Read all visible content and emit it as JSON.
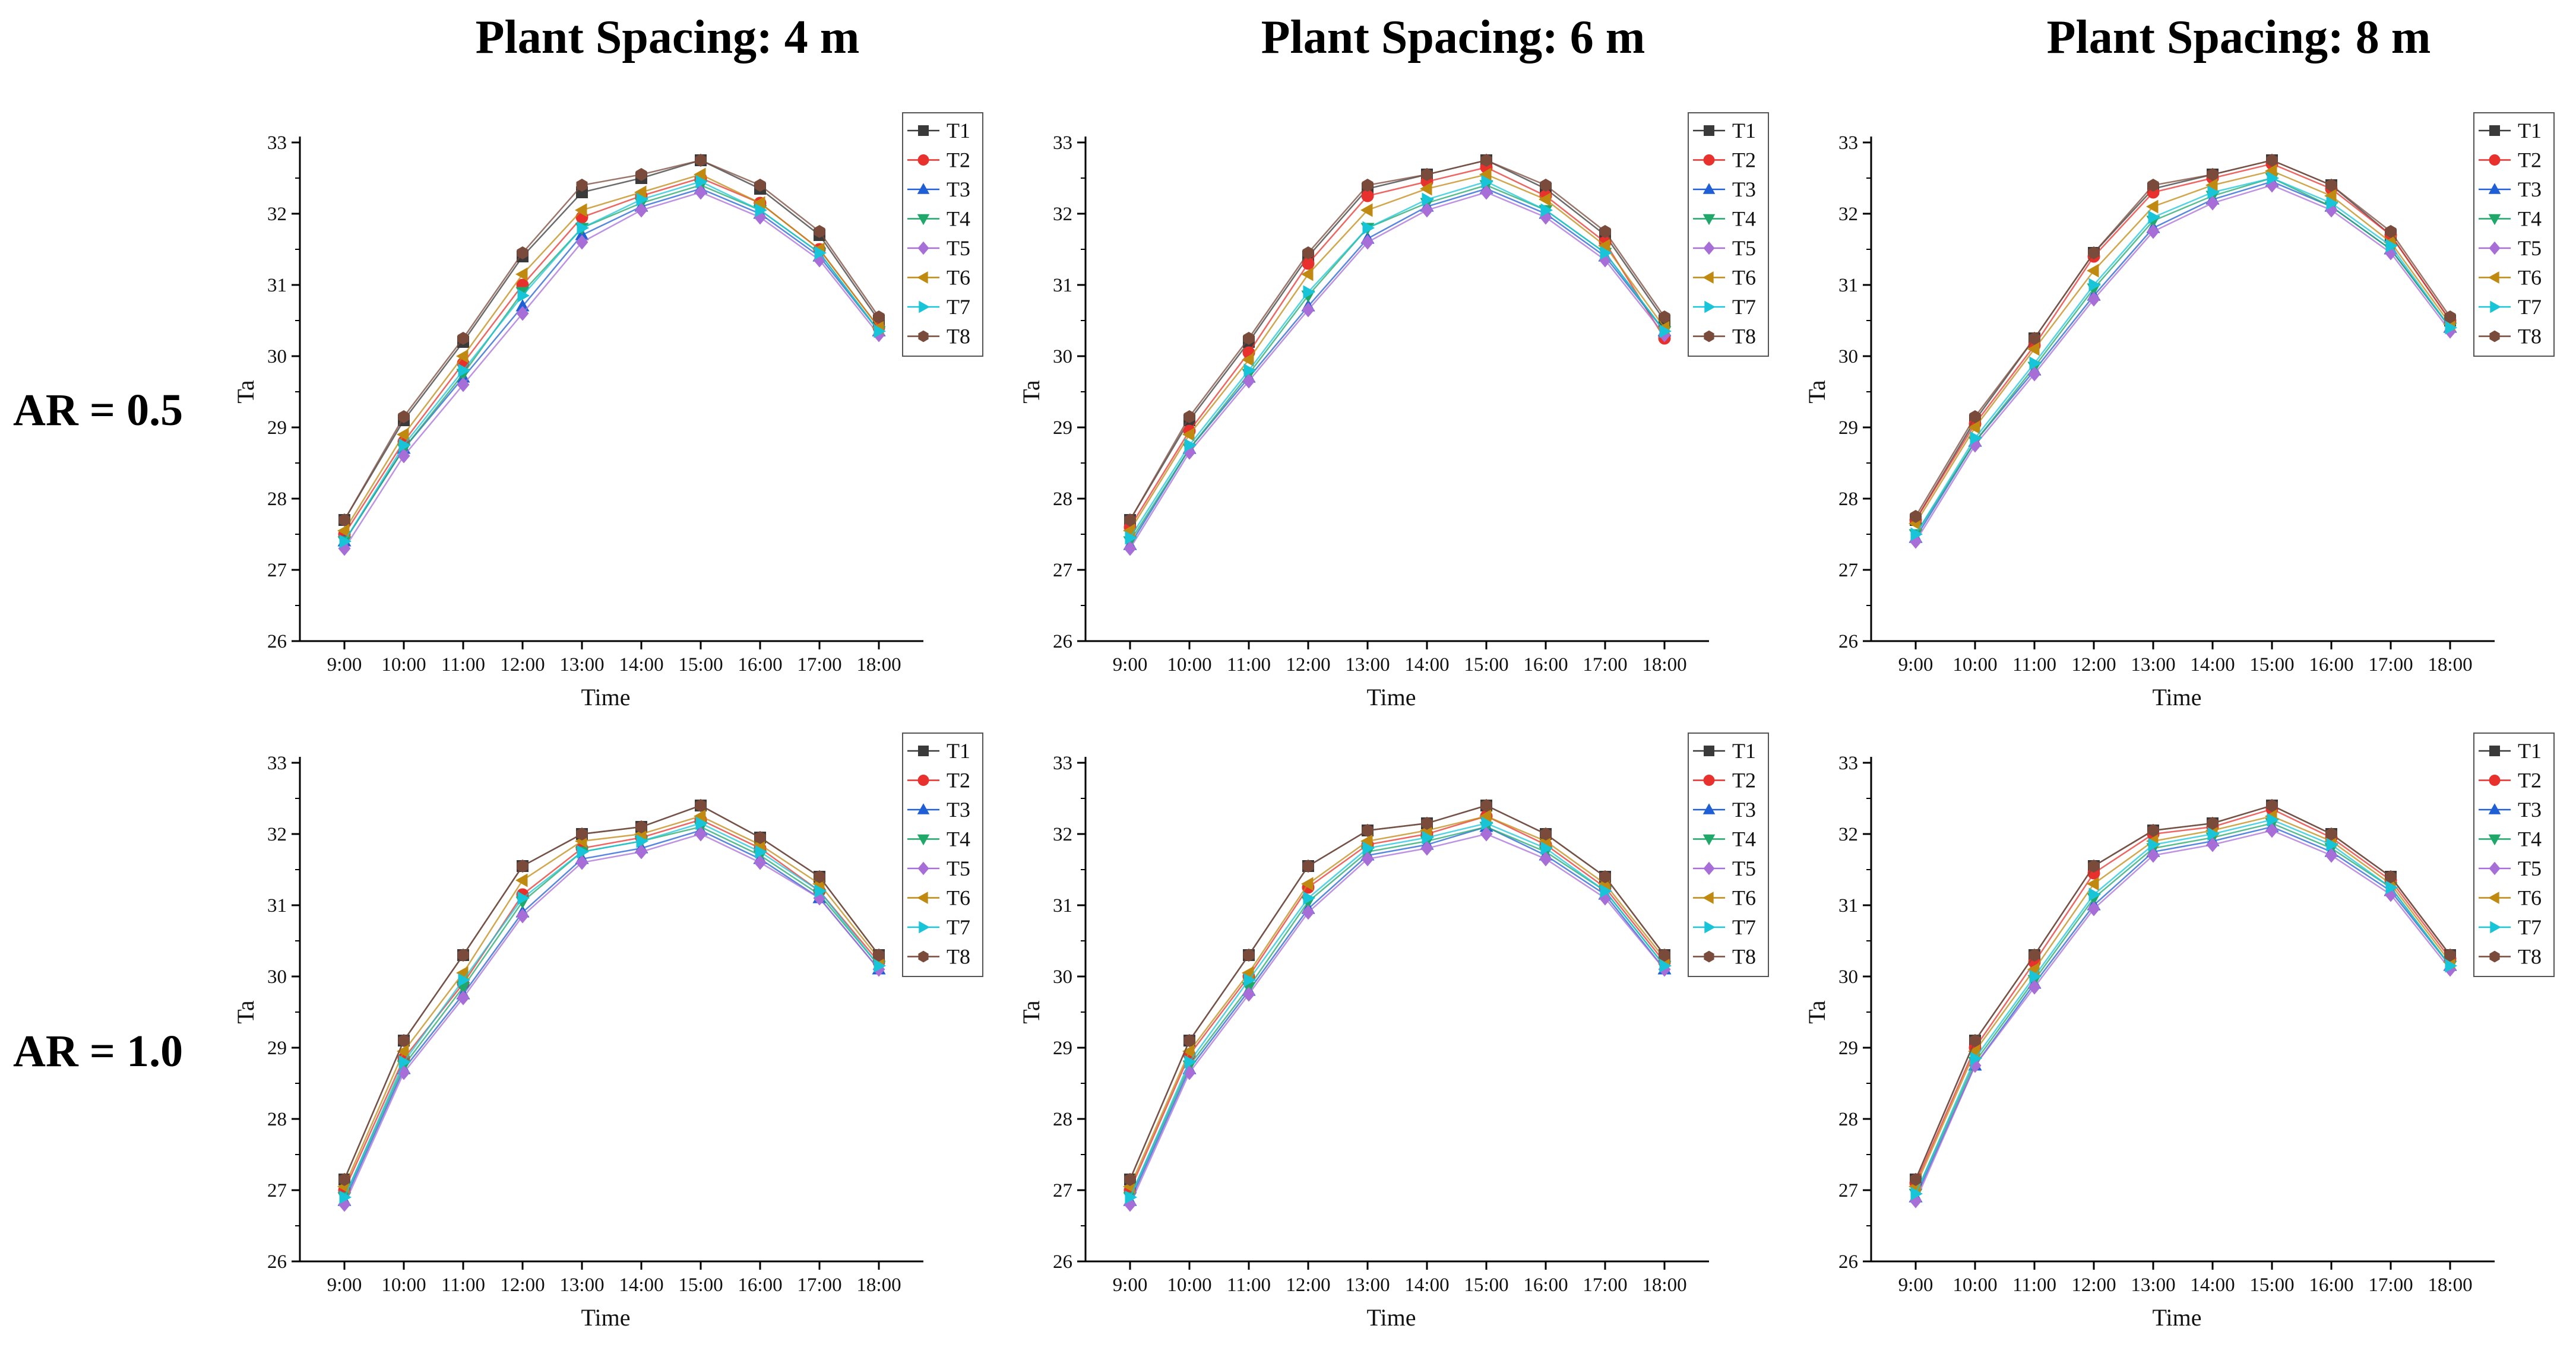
{
  "columns": [
    "Plant Spacing: 4 m",
    "Plant Spacing: 6 m",
    "Plant Spacing: 8 m"
  ],
  "rows": [
    "AR = 0.5",
    "AR = 1.0"
  ],
  "series_style": [
    {
      "name": "T1",
      "color": "#3a3a3a",
      "marker": "square"
    },
    {
      "name": "T2",
      "color": "#e8312d",
      "marker": "circle"
    },
    {
      "name": "T3",
      "color": "#1f5fd6",
      "marker": "triangle-up"
    },
    {
      "name": "T4",
      "color": "#1fa86a",
      "marker": "triangle-down"
    },
    {
      "name": "T5",
      "color": "#a86ed8",
      "marker": "diamond"
    },
    {
      "name": "T6",
      "color": "#c08a10",
      "marker": "triangle-left"
    },
    {
      "name": "T7",
      "color": "#18c4d8",
      "marker": "triangle-right"
    },
    {
      "name": "T8",
      "color": "#7a4a3a",
      "marker": "hexagon"
    }
  ],
  "chart_data": [
    {
      "type": "line",
      "column_title": "Plant Spacing: 4 m",
      "row_title": "AR = 0.5",
      "xlabel": "Time",
      "ylabel": "Ta",
      "ylim": [
        26,
        33
      ],
      "yticks": [
        26,
        27,
        28,
        29,
        30,
        31,
        32,
        33
      ],
      "categories": [
        "9:00",
        "10:00",
        "11:00",
        "12:00",
        "13:00",
        "14:00",
        "15:00",
        "16:00",
        "17:00",
        "18:00"
      ],
      "series": [
        {
          "name": "T1",
          "values": [
            27.7,
            29.1,
            30.2,
            31.4,
            32.3,
            32.5,
            32.75,
            32.35,
            31.7,
            30.5
          ]
        },
        {
          "name": "T2",
          "values": [
            27.5,
            28.8,
            29.9,
            31.0,
            31.95,
            32.25,
            32.5,
            32.15,
            31.5,
            30.4
          ]
        },
        {
          "name": "T3",
          "values": [
            27.4,
            28.7,
            29.7,
            30.7,
            31.7,
            32.1,
            32.35,
            32.0,
            31.4,
            30.35
          ]
        },
        {
          "name": "T4",
          "values": [
            27.4,
            28.7,
            29.75,
            30.9,
            31.8,
            32.15,
            32.4,
            32.05,
            31.45,
            30.35
          ]
        },
        {
          "name": "T5",
          "values": [
            27.3,
            28.6,
            29.6,
            30.6,
            31.6,
            32.05,
            32.3,
            31.95,
            31.35,
            30.3
          ]
        },
        {
          "name": "T6",
          "values": [
            27.55,
            28.9,
            30.0,
            31.15,
            32.05,
            32.3,
            32.55,
            32.15,
            31.5,
            30.4
          ]
        },
        {
          "name": "T7",
          "values": [
            27.4,
            28.75,
            29.8,
            30.85,
            31.8,
            32.2,
            32.45,
            32.05,
            31.45,
            30.35
          ]
        },
        {
          "name": "T8",
          "values": [
            27.7,
            29.15,
            30.25,
            31.45,
            32.4,
            32.55,
            32.75,
            32.4,
            31.75,
            30.55
          ]
        }
      ]
    },
    {
      "type": "line",
      "column_title": "Plant Spacing: 6 m",
      "row_title": "AR = 0.5",
      "xlabel": "Time",
      "ylabel": "Ta",
      "ylim": [
        26,
        33
      ],
      "yticks": [
        26,
        27,
        28,
        29,
        30,
        31,
        32,
        33
      ],
      "categories": [
        "9:00",
        "10:00",
        "11:00",
        "12:00",
        "13:00",
        "14:00",
        "15:00",
        "16:00",
        "17:00",
        "18:00"
      ],
      "series": [
        {
          "name": "T1",
          "values": [
            27.7,
            29.1,
            30.2,
            31.4,
            32.35,
            32.55,
            32.75,
            32.35,
            31.7,
            30.5
          ]
        },
        {
          "name": "T2",
          "values": [
            27.6,
            28.95,
            30.05,
            31.3,
            32.25,
            32.45,
            32.65,
            32.25,
            31.6,
            30.25
          ]
        },
        {
          "name": "T3",
          "values": [
            27.35,
            28.7,
            29.7,
            30.7,
            31.65,
            32.1,
            32.35,
            32.0,
            31.4,
            30.35
          ]
        },
        {
          "name": "T4",
          "values": [
            27.4,
            28.7,
            29.75,
            30.85,
            31.8,
            32.15,
            32.4,
            32.05,
            31.45,
            30.35
          ]
        },
        {
          "name": "T5",
          "values": [
            27.3,
            28.65,
            29.65,
            30.65,
            31.6,
            32.05,
            32.3,
            31.95,
            31.35,
            30.3
          ]
        },
        {
          "name": "T6",
          "values": [
            27.55,
            28.9,
            29.95,
            31.15,
            32.05,
            32.35,
            32.55,
            32.2,
            31.55,
            30.4
          ]
        },
        {
          "name": "T7",
          "values": [
            27.45,
            28.75,
            29.8,
            30.9,
            31.8,
            32.2,
            32.45,
            32.05,
            31.45,
            30.35
          ]
        },
        {
          "name": "T8",
          "values": [
            27.7,
            29.15,
            30.25,
            31.45,
            32.4,
            32.55,
            32.75,
            32.4,
            31.75,
            30.55
          ]
        }
      ]
    },
    {
      "type": "line",
      "column_title": "Plant Spacing: 8 m",
      "row_title": "AR = 0.5",
      "xlabel": "Time",
      "ylabel": "Ta",
      "ylim": [
        26,
        33
      ],
      "yticks": [
        26,
        27,
        28,
        29,
        30,
        31,
        32,
        33
      ],
      "categories": [
        "9:00",
        "10:00",
        "11:00",
        "12:00",
        "13:00",
        "14:00",
        "15:00",
        "16:00",
        "17:00",
        "18:00"
      ],
      "series": [
        {
          "name": "T1",
          "values": [
            27.7,
            29.1,
            30.25,
            31.45,
            32.35,
            32.55,
            32.75,
            32.4,
            31.7,
            30.5
          ]
        },
        {
          "name": "T2",
          "values": [
            27.7,
            29.05,
            30.15,
            31.4,
            32.3,
            32.5,
            32.7,
            32.35,
            31.7,
            30.5
          ]
        },
        {
          "name": "T3",
          "values": [
            27.45,
            28.8,
            29.8,
            30.85,
            31.8,
            32.2,
            32.45,
            32.1,
            31.5,
            30.4
          ]
        },
        {
          "name": "T4",
          "values": [
            27.5,
            28.8,
            29.85,
            30.95,
            31.9,
            32.25,
            32.5,
            32.1,
            31.5,
            30.4
          ]
        },
        {
          "name": "T5",
          "values": [
            27.4,
            28.75,
            29.75,
            30.8,
            31.75,
            32.15,
            32.4,
            32.05,
            31.45,
            30.35
          ]
        },
        {
          "name": "T6",
          "values": [
            27.65,
            29.0,
            30.1,
            31.2,
            32.1,
            32.4,
            32.6,
            32.25,
            31.6,
            30.45
          ]
        },
        {
          "name": "T7",
          "values": [
            27.5,
            28.85,
            29.9,
            31.0,
            31.95,
            32.3,
            32.5,
            32.15,
            31.55,
            30.4
          ]
        },
        {
          "name": "T8",
          "values": [
            27.75,
            29.15,
            30.25,
            31.45,
            32.4,
            32.55,
            32.75,
            32.4,
            31.75,
            30.55
          ]
        }
      ]
    },
    {
      "type": "line",
      "column_title": "Plant Spacing: 4 m",
      "row_title": "AR = 1.0",
      "xlabel": "Time",
      "ylabel": "Ta",
      "ylim": [
        26,
        33
      ],
      "yticks": [
        26,
        27,
        28,
        29,
        30,
        31,
        32,
        33
      ],
      "categories": [
        "9:00",
        "10:00",
        "11:00",
        "12:00",
        "13:00",
        "14:00",
        "15:00",
        "16:00",
        "17:00",
        "18:00"
      ],
      "series": [
        {
          "name": "T1",
          "values": [
            27.15,
            29.1,
            30.3,
            31.55,
            32.0,
            32.1,
            32.4,
            31.95,
            31.4,
            30.3
          ]
        },
        {
          "name": "T2",
          "values": [
            27.0,
            28.85,
            29.9,
            31.15,
            31.8,
            31.95,
            32.2,
            31.8,
            31.2,
            30.2
          ]
        },
        {
          "name": "T3",
          "values": [
            26.85,
            28.7,
            29.75,
            30.9,
            31.65,
            31.8,
            32.05,
            31.65,
            31.1,
            30.1
          ]
        },
        {
          "name": "T4",
          "values": [
            26.9,
            28.75,
            29.85,
            31.05,
            31.75,
            31.9,
            32.1,
            31.7,
            31.15,
            30.15
          ]
        },
        {
          "name": "T5",
          "values": [
            26.8,
            28.65,
            29.7,
            30.85,
            31.6,
            31.75,
            32.0,
            31.6,
            31.1,
            30.1
          ]
        },
        {
          "name": "T6",
          "values": [
            27.05,
            28.95,
            30.05,
            31.35,
            31.9,
            32.0,
            32.25,
            31.85,
            31.3,
            30.25
          ]
        },
        {
          "name": "T7",
          "values": [
            26.9,
            28.8,
            29.95,
            31.1,
            31.75,
            31.9,
            32.15,
            31.75,
            31.2,
            30.15
          ]
        },
        {
          "name": "T8",
          "values": [
            27.15,
            29.1,
            30.3,
            31.55,
            32.0,
            32.1,
            32.4,
            31.95,
            31.4,
            30.3
          ]
        }
      ]
    },
    {
      "type": "line",
      "column_title": "Plant Spacing: 6 m",
      "row_title": "AR = 1.0",
      "xlabel": "Time",
      "ylabel": "Ta",
      "ylim": [
        26,
        33
      ],
      "yticks": [
        26,
        27,
        28,
        29,
        30,
        31,
        32,
        33
      ],
      "categories": [
        "9:00",
        "10:00",
        "11:00",
        "12:00",
        "13:00",
        "14:00",
        "15:00",
        "16:00",
        "17:00",
        "18:00"
      ],
      "series": [
        {
          "name": "T1",
          "values": [
            27.15,
            29.1,
            30.3,
            31.55,
            32.05,
            32.15,
            32.4,
            32.0,
            31.4,
            30.3
          ]
        },
        {
          "name": "T2",
          "values": [
            27.0,
            28.9,
            30.0,
            31.25,
            31.85,
            32.0,
            32.25,
            31.85,
            31.25,
            30.2
          ]
        },
        {
          "name": "T3",
          "values": [
            26.85,
            28.7,
            29.8,
            30.95,
            31.7,
            31.85,
            32.1,
            31.7,
            31.15,
            30.1
          ]
        },
        {
          "name": "T4",
          "values": [
            26.9,
            28.75,
            29.85,
            31.05,
            31.75,
            31.9,
            32.1,
            31.75,
            31.2,
            30.15
          ]
        },
        {
          "name": "T5",
          "values": [
            26.8,
            28.65,
            29.75,
            30.9,
            31.65,
            31.8,
            32.0,
            31.65,
            31.1,
            30.1
          ]
        },
        {
          "name": "T6",
          "values": [
            27.05,
            28.95,
            30.05,
            31.3,
            31.9,
            32.05,
            32.25,
            31.9,
            31.3,
            30.25
          ]
        },
        {
          "name": "T7",
          "values": [
            26.9,
            28.8,
            29.95,
            31.1,
            31.8,
            31.95,
            32.15,
            31.8,
            31.2,
            30.15
          ]
        },
        {
          "name": "T8",
          "values": [
            27.15,
            29.1,
            30.3,
            31.55,
            32.05,
            32.15,
            32.4,
            32.0,
            31.4,
            30.3
          ]
        }
      ]
    },
    {
      "type": "line",
      "column_title": "Plant Spacing: 8 m",
      "row_title": "AR = 1.0",
      "xlabel": "Time",
      "ylabel": "Ta",
      "ylim": [
        26,
        33
      ],
      "yticks": [
        26,
        27,
        28,
        29,
        30,
        31,
        32,
        33
      ],
      "categories": [
        "9:00",
        "10:00",
        "11:00",
        "12:00",
        "13:00",
        "14:00",
        "15:00",
        "16:00",
        "17:00",
        "18:00"
      ],
      "series": [
        {
          "name": "T1",
          "values": [
            27.15,
            29.1,
            30.3,
            31.55,
            32.05,
            32.15,
            32.4,
            32.0,
            31.4,
            30.3
          ]
        },
        {
          "name": "T2",
          "values": [
            27.1,
            29.0,
            30.2,
            31.45,
            32.0,
            32.1,
            32.35,
            31.95,
            31.35,
            30.25
          ]
        },
        {
          "name": "T3",
          "values": [
            26.9,
            28.75,
            29.9,
            31.0,
            31.75,
            31.9,
            32.1,
            31.75,
            31.2,
            30.15
          ]
        },
        {
          "name": "T4",
          "values": [
            26.95,
            28.8,
            29.95,
            31.1,
            31.8,
            31.95,
            32.15,
            31.8,
            31.25,
            30.15
          ]
        },
        {
          "name": "T5",
          "values": [
            26.85,
            28.75,
            29.85,
            30.95,
            31.7,
            31.85,
            32.05,
            31.7,
            31.15,
            30.1
          ]
        },
        {
          "name": "T6",
          "values": [
            27.05,
            28.95,
            30.1,
            31.3,
            31.9,
            32.05,
            32.25,
            31.9,
            31.3,
            30.2
          ]
        },
        {
          "name": "T7",
          "values": [
            26.95,
            28.85,
            30.0,
            31.15,
            31.85,
            32.0,
            32.2,
            31.85,
            31.25,
            30.15
          ]
        },
        {
          "name": "T8",
          "values": [
            27.15,
            29.1,
            30.3,
            31.55,
            32.05,
            32.15,
            32.4,
            32.0,
            31.4,
            30.3
          ]
        }
      ]
    }
  ]
}
